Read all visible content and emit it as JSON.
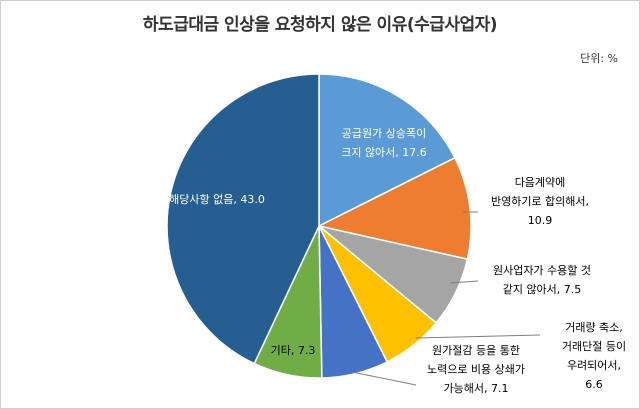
{
  "chart_data": {
    "type": "pie",
    "title": "하도급대금 인상을 요청하지 않은 이유(수급사업자)",
    "unit_label": "단위: %",
    "slices": [
      {
        "label_lines": [
          "공급원가 상승폭이",
          "크지 않아서, 17.6"
        ],
        "value": 17.6,
        "color": "#5B9BD5"
      },
      {
        "label_lines": [
          "다음계약에",
          "반영하기로 합의해서,",
          "10.9"
        ],
        "value": 10.9,
        "color": "#ED7D31"
      },
      {
        "label_lines": [
          "원사업자가 수용할 것",
          "같지 않아서, 7.5"
        ],
        "value": 7.5,
        "color": "#A5A5A5"
      },
      {
        "label_lines": [
          "거래량 축소,",
          "거래단절 등이",
          "우려되어서,",
          "6.6"
        ],
        "value": 6.6,
        "color": "#FFC000"
      },
      {
        "label_lines": [
          "원가절감 등을 통한",
          "노력으로 비용 상쇄가",
          "가능해서, 7.1"
        ],
        "value": 7.1,
        "color": "#4472C4"
      },
      {
        "label_lines": [
          "기타, 7.3"
        ],
        "value": 7.3,
        "color": "#70AD47"
      },
      {
        "label_lines": [
          "해당사항 없음, 43.0"
        ],
        "value": 43.0,
        "color": "#255E91"
      }
    ]
  }
}
